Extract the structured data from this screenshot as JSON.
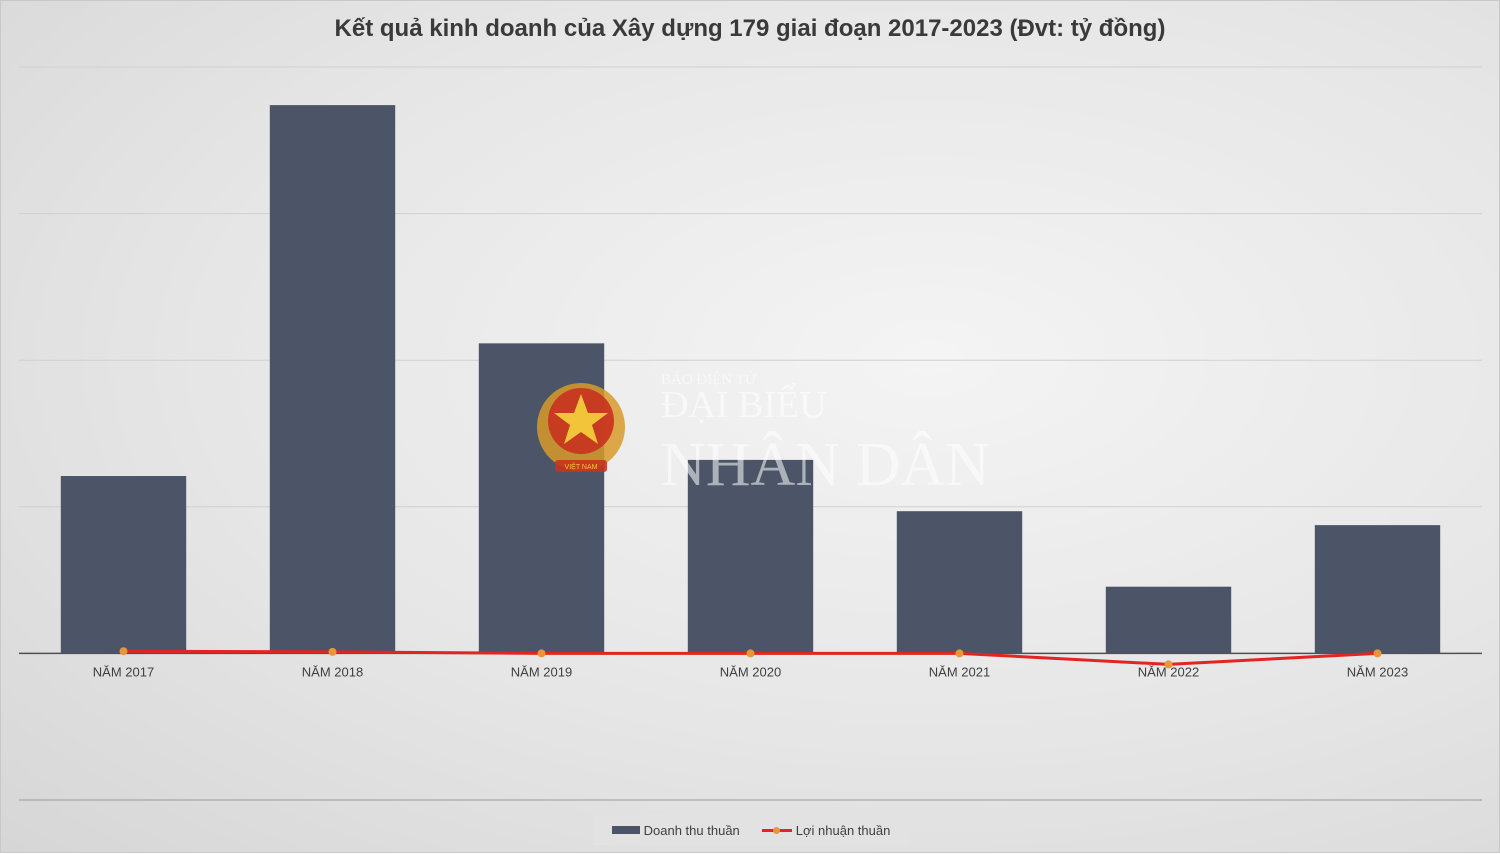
{
  "chart_data": {
    "type": "bar",
    "title": "Kết quả kinh doanh của Xây dựng 179 giai đoạn 2017-2023 (Đvt: tỷ đồng)",
    "categories": [
      "NĂM 2017",
      "NĂM 2018",
      "NĂM 2019",
      "NĂM 2020",
      "NĂM 2021",
      "NĂM 2022",
      "NĂM 2023"
    ],
    "series": [
      {
        "name": "Doanh thu thuần",
        "type": "bar",
        "color": "#4b5567",
        "values": [
          242,
          748,
          423,
          264,
          194,
          91,
          175
        ]
      },
      {
        "name": "Lợi nhuận thuần",
        "type": "line",
        "color": "#e32420",
        "marker_color": "#e8963a",
        "values": [
          3,
          2,
          0,
          0,
          0,
          -15,
          0
        ]
      }
    ],
    "ylim": [
      -200,
      800
    ],
    "grid": true,
    "legend": "bottom"
  },
  "watermark": {
    "line1": "BÁO ĐIỆN TỬ",
    "line2": "ĐẠI BIỂU",
    "line3": "NHÂN DÂN",
    "emblem_text": "VIỆT NAM",
    "emblem_icon": "vietnam-emblem-icon"
  }
}
